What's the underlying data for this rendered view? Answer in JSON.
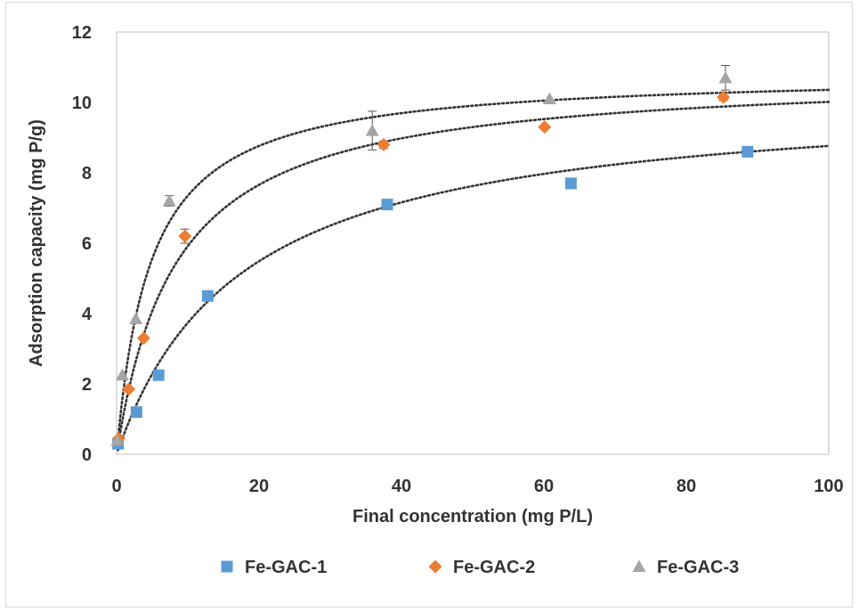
{
  "chart_data": {
    "type": "scatter",
    "title": "",
    "xlabel": "Final concentration (mg P/L)",
    "ylabel": "Adsorption capacity (mg P/g)",
    "xlim": [
      0,
      100
    ],
    "ylim": [
      0,
      12
    ],
    "xticks": [
      0,
      20,
      40,
      60,
      80,
      100
    ],
    "yticks": [
      0,
      2,
      4,
      6,
      8,
      10,
      12
    ],
    "grid": false,
    "legend_position": "bottom",
    "series": [
      {
        "name": "Fe-GAC-1",
        "marker": "square",
        "color": "#5b9bd5",
        "x": [
          0.2,
          2.8,
          5.9,
          12.8,
          38.0,
          63.8,
          88.6
        ],
        "y": [
          0.3,
          1.2,
          2.25,
          4.5,
          7.1,
          7.7,
          8.6
        ],
        "error": [
          0,
          0,
          0,
          0,
          0,
          0,
          0.05
        ],
        "fit": {
          "model": "langmuir",
          "qmax": 10.3,
          "K": 0.057
        }
      },
      {
        "name": "Fe-GAC-2",
        "marker": "diamond",
        "color": "#ed7d31",
        "x": [
          0.3,
          1.7,
          3.8,
          9.6,
          37.5,
          60.1,
          85.2
        ],
        "y": [
          0.45,
          1.85,
          3.3,
          6.2,
          8.8,
          9.3,
          10.15
        ],
        "error": [
          0,
          0,
          0,
          0.2,
          0.1,
          0,
          0.1
        ],
        "fit": {
          "model": "langmuir",
          "qmax": 10.85,
          "K": 0.12
        }
      },
      {
        "name": "Fe-GAC-3",
        "marker": "triangle",
        "color": "#a5a5a5",
        "x": [
          0.1,
          0.8,
          2.7,
          7.4,
          35.9,
          60.8,
          85.5
        ],
        "y": [
          0.4,
          2.25,
          3.85,
          7.2,
          9.2,
          10.1,
          10.7
        ],
        "error": [
          0,
          0,
          0,
          0.15,
          0.55,
          0,
          0.35
        ],
        "fit": {
          "model": "langmuir",
          "qmax": 10.85,
          "K": 0.21
        }
      }
    ]
  }
}
